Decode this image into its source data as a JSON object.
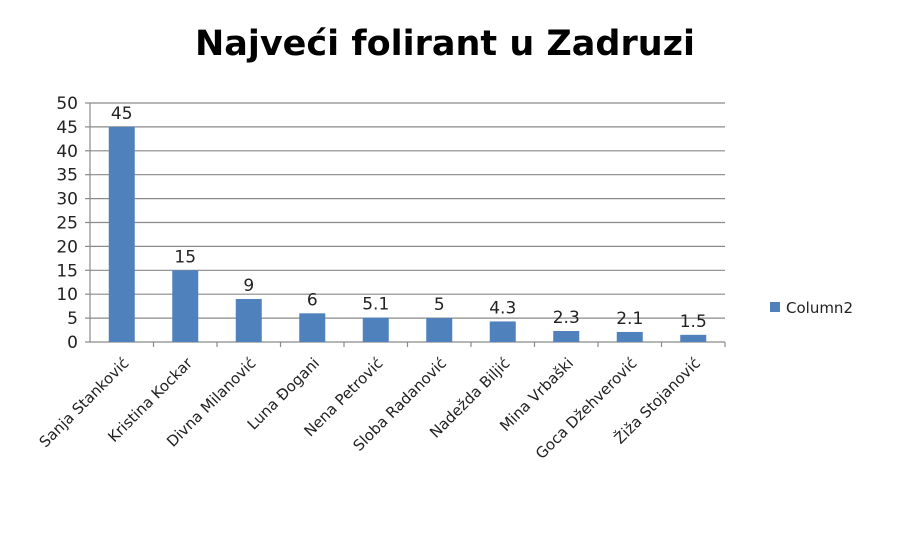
{
  "chart_data": {
    "type": "bar",
    "title": "Najveći folirant u Zadruzi",
    "categories": [
      "Sanja Stanković",
      "Kristina Kockar",
      "Divna Milanović",
      "Luna Đogani",
      "Nena Petrović",
      "Sloba Radanović",
      "Nadežda Biljić",
      "Mina Vrbaški",
      "Goca Džehverović",
      "Žiža Stojanović"
    ],
    "series": [
      {
        "name": "Column2",
        "values": [
          45,
          15,
          9,
          6,
          5.1,
          5,
          4.3,
          2.3,
          2.1,
          1.5
        ],
        "labels": [
          "45",
          "15",
          "9",
          "6",
          "5.1",
          "5",
          "4.3",
          "2.3",
          "2.1",
          "1.5"
        ],
        "color": "#4F81BD"
      }
    ],
    "ylim": [
      0,
      50
    ],
    "yticks": [
      "0",
      "5",
      "10",
      "15",
      "20",
      "25",
      "30",
      "35",
      "40",
      "45",
      "50"
    ],
    "grid": true,
    "legend": "right"
  }
}
